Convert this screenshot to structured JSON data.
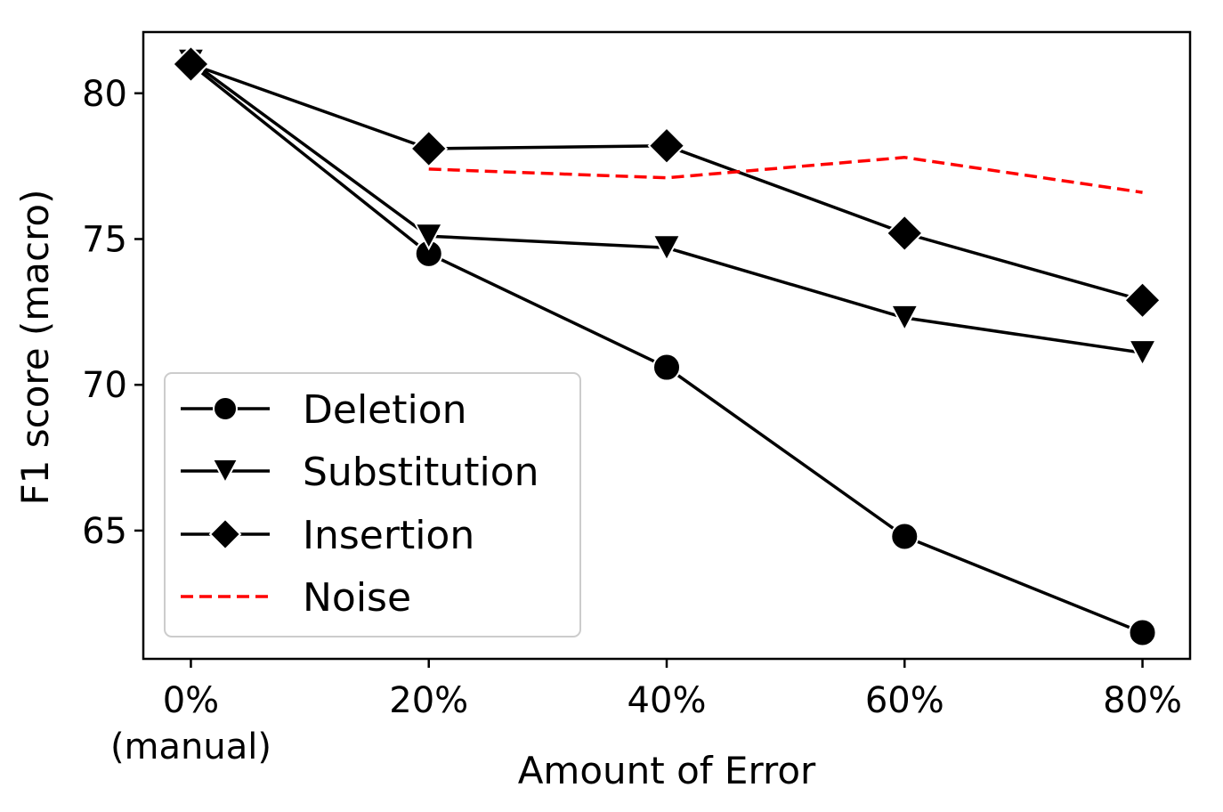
{
  "chart_data": {
    "type": "line",
    "title": "",
    "xlabel": "Amount of Error",
    "ylabel": "F1 score (macro)",
    "categories": [
      "0%",
      "20%",
      "40%",
      "60%",
      "80%"
    ],
    "category_sublabels": [
      "(manual)",
      "",
      "",
      "",
      ""
    ],
    "x": [
      0,
      20,
      40,
      60,
      80
    ],
    "xlim": [
      -4,
      84
    ],
    "ylim": [
      60.6,
      82.1
    ],
    "yticks": [
      65,
      70,
      75,
      80
    ],
    "grid": false,
    "legend_position": "lower-left",
    "series": [
      {
        "name": "Deletion",
        "marker": "circle",
        "line": "solid",
        "color": "#000000",
        "x": [
          0,
          20,
          40,
          60,
          80
        ],
        "values": [
          81.0,
          74.5,
          70.6,
          64.8,
          61.5
        ]
      },
      {
        "name": "Substitution",
        "marker": "triangle-down",
        "line": "solid",
        "color": "#000000",
        "x": [
          0,
          20,
          40,
          60,
          80
        ],
        "values": [
          81.1,
          75.1,
          74.7,
          72.3,
          71.1
        ]
      },
      {
        "name": "Insertion",
        "marker": "diamond",
        "line": "solid",
        "color": "#000000",
        "x": [
          0,
          20,
          40,
          60,
          80
        ],
        "values": [
          81.0,
          78.1,
          78.2,
          75.2,
          72.9
        ]
      },
      {
        "name": "Noise",
        "marker": "none",
        "line": "dashed",
        "color": "#ff0000",
        "x": [
          20,
          40,
          60,
          80
        ],
        "values": [
          77.4,
          77.1,
          77.8,
          76.6
        ]
      }
    ]
  }
}
